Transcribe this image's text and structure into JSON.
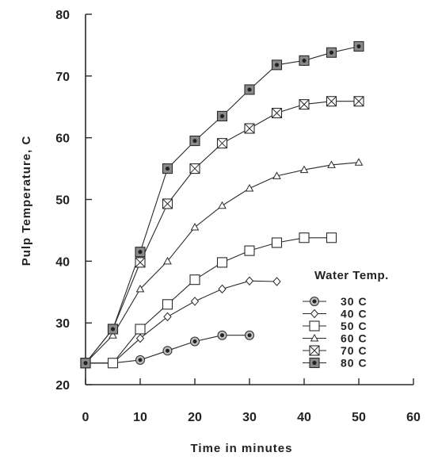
{
  "chart_data": {
    "type": "line",
    "title": "",
    "xlabel": "Time in minutes",
    "ylabel": "Pulp Temperature, C",
    "xlim": [
      0,
      60
    ],
    "ylim": [
      20,
      80
    ],
    "xticks": [
      "0",
      "10",
      "20",
      "30",
      "40",
      "50",
      "60"
    ],
    "yticks": [
      "20",
      "30",
      "40",
      "50",
      "60",
      "70",
      "80"
    ],
    "grid": false,
    "legend_title": "Water Temp.",
    "legend_position": "right-lower",
    "series": [
      {
        "name": "30 C",
        "marker": "dot-circle",
        "x": [
          0,
          5,
          10,
          15,
          20,
          25,
          30
        ],
        "y": [
          23.5,
          23.5,
          24.0,
          25.5,
          27.0,
          28.0,
          28.0
        ]
      },
      {
        "name": "40 C",
        "marker": "diamond",
        "x": [
          0,
          5,
          10,
          15,
          20,
          25,
          30,
          35
        ],
        "y": [
          23.5,
          23.5,
          27.5,
          31.0,
          33.5,
          35.5,
          36.8,
          36.7
        ]
      },
      {
        "name": "50 C",
        "marker": "square",
        "x": [
          0,
          5,
          10,
          15,
          20,
          25,
          30,
          35,
          40,
          45
        ],
        "y": [
          23.5,
          23.5,
          29.0,
          33.0,
          37.0,
          39.8,
          41.7,
          43.0,
          43.8,
          43.8
        ]
      },
      {
        "name": "60 C",
        "marker": "triangle",
        "x": [
          0,
          5,
          10,
          15,
          20,
          25,
          30,
          35,
          40,
          45,
          50
        ],
        "y": [
          23.5,
          28.0,
          35.5,
          40.0,
          45.5,
          49.0,
          51.8,
          53.8,
          54.8,
          55.6,
          56.0
        ]
      },
      {
        "name": "70 C",
        "marker": "box-x",
        "x": [
          0,
          5,
          10,
          15,
          20,
          25,
          30,
          35,
          40,
          45,
          50
        ],
        "y": [
          23.5,
          29.0,
          39.8,
          49.3,
          55.0,
          59.1,
          61.5,
          64.0,
          65.4,
          65.9,
          65.9
        ]
      },
      {
        "name": "80 C",
        "marker": "filled-square",
        "x": [
          0,
          5,
          10,
          15,
          20,
          25,
          30,
          35,
          40,
          45,
          50
        ],
        "y": [
          23.5,
          29.0,
          41.5,
          55.0,
          59.5,
          63.5,
          67.8,
          71.8,
          72.5,
          73.8,
          74.8
        ]
      }
    ]
  }
}
